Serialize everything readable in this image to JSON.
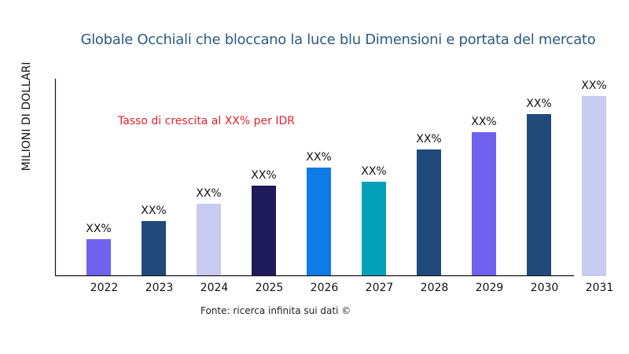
{
  "chart_data": {
    "type": "bar",
    "title": "Globale Occhiali che bloccano la luce blu Dimensioni e portata del mercato",
    "ylabel": "MILIONI DI DOLLARI",
    "xlabel": "",
    "annotation": "Tasso di crescita al XX% per IDR",
    "source": "Fonte: ricerca infinita sui dati ©",
    "categories": [
      "2022",
      "2023",
      "2024",
      "2025",
      "2026",
      "2027",
      "2028",
      "2029",
      "2030",
      "2031"
    ],
    "values": [
      46,
      69,
      91,
      114,
      137,
      119,
      160,
      182,
      205,
      228
    ],
    "data_labels": [
      "XX%",
      "XX%",
      "XX%",
      "XX%",
      "XX%",
      "XX%",
      "XX%",
      "XX%",
      "XX%",
      "XX%"
    ],
    "colors": [
      "#7062ef",
      "#1f4a7a",
      "#c8caef",
      "#1f1a59",
      "#0f7be6",
      "#02a0b9",
      "#1f4a7a",
      "#7062ef",
      "#1f4a7a",
      "#c8caef"
    ],
    "ylim": [
      0,
      250
    ],
    "grid": false,
    "legend": "none"
  }
}
